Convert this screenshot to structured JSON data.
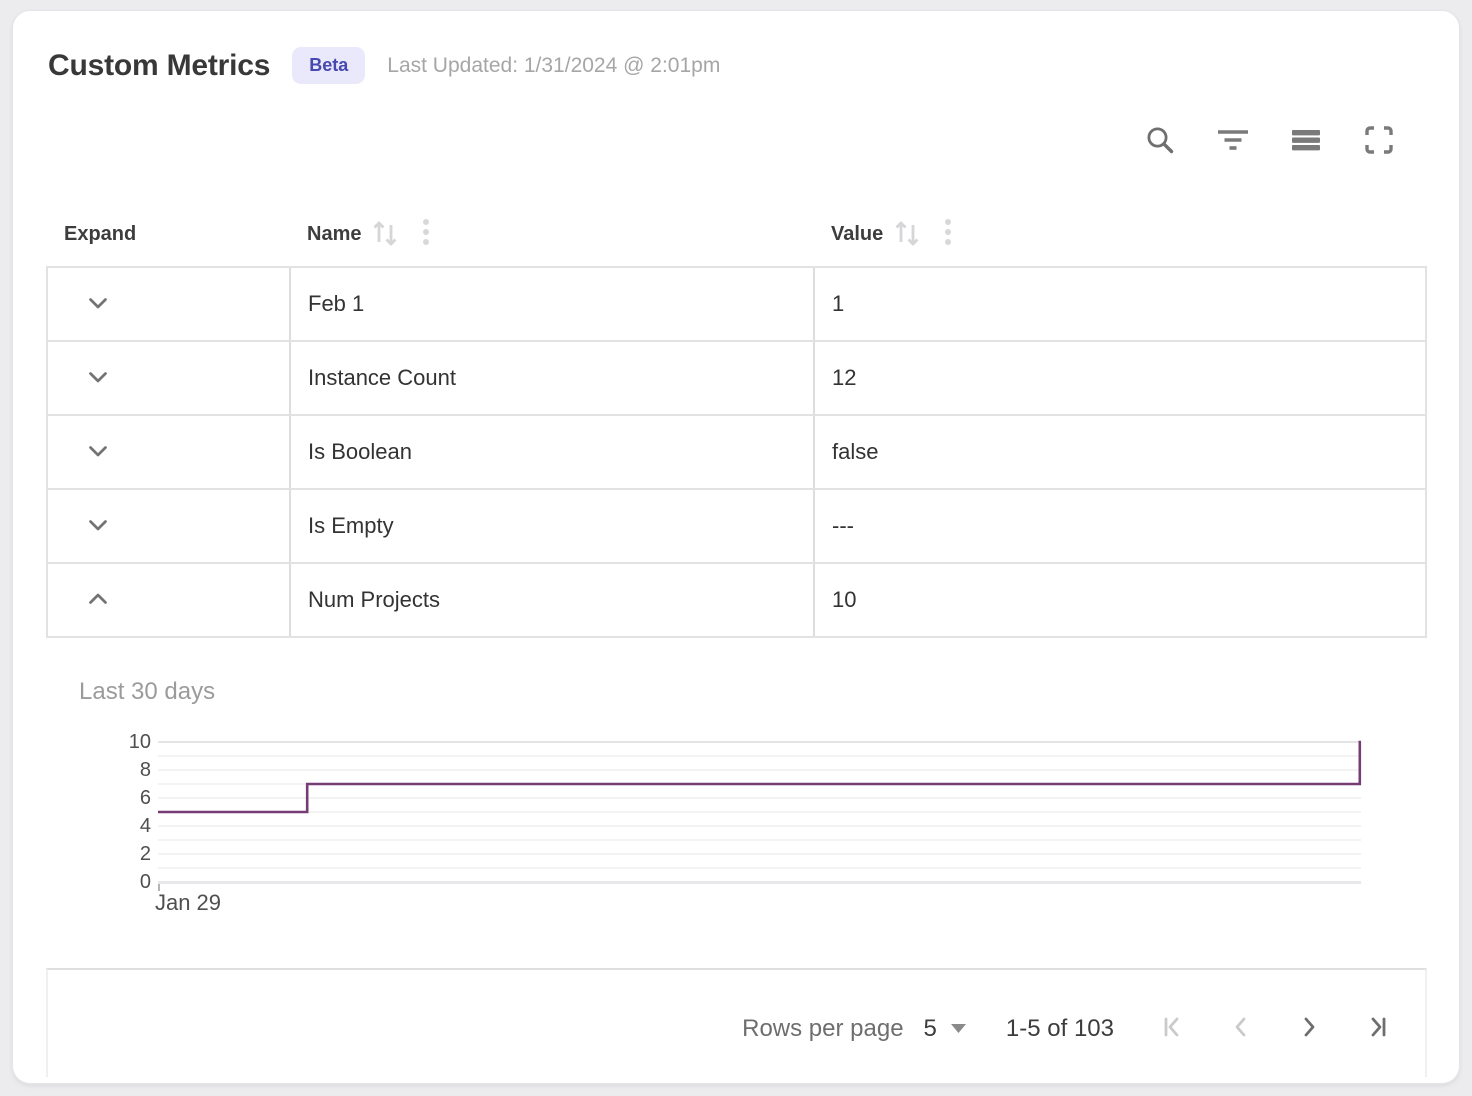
{
  "header": {
    "title": "Custom Metrics",
    "badge": "Beta",
    "badge_bg": "#e9e9fb",
    "badge_color": "#4749b0",
    "last_updated": "Last Updated: 1/31/2024 @ 2:01pm"
  },
  "toolbar": {
    "icons": [
      "search-icon",
      "filter-icon",
      "density-icon",
      "fullscreen-icon"
    ]
  },
  "table": {
    "columns": [
      {
        "label": "Expand",
        "sortable": false
      },
      {
        "label": "Name",
        "sortable": true
      },
      {
        "label": "Value",
        "sortable": true
      }
    ],
    "rows": [
      {
        "name": "Feb 1",
        "value": "1",
        "expanded": false
      },
      {
        "name": "Instance Count",
        "value": "12",
        "expanded": false
      },
      {
        "name": "Is Boolean",
        "value": "false",
        "expanded": false
      },
      {
        "name": "Is Empty",
        "value": "---",
        "expanded": false
      },
      {
        "name": "Num Projects",
        "value": "10",
        "expanded": true
      }
    ]
  },
  "chart_data": {
    "type": "line",
    "title": "Last 30 days",
    "x_tick_labels": [
      "Jan 29"
    ],
    "y_ticks": [
      0,
      2,
      4,
      6,
      8,
      10
    ],
    "ylim": [
      0,
      10
    ],
    "grid": true,
    "line_color": "#763c74",
    "points": [
      {
        "x_frac": 0.0,
        "y": 5
      },
      {
        "x_frac": 0.124,
        "y": 5
      },
      {
        "x_frac": 0.124,
        "y": 7
      },
      {
        "x_frac": 0.999,
        "y": 7
      },
      {
        "x_frac": 0.999,
        "y": 10
      },
      {
        "x_frac": 1.0,
        "y": 10
      }
    ]
  },
  "pagination": {
    "rows_per_page_label": "Rows per page",
    "rows_per_page_value": "5",
    "range_label": "1-5 of 103"
  }
}
